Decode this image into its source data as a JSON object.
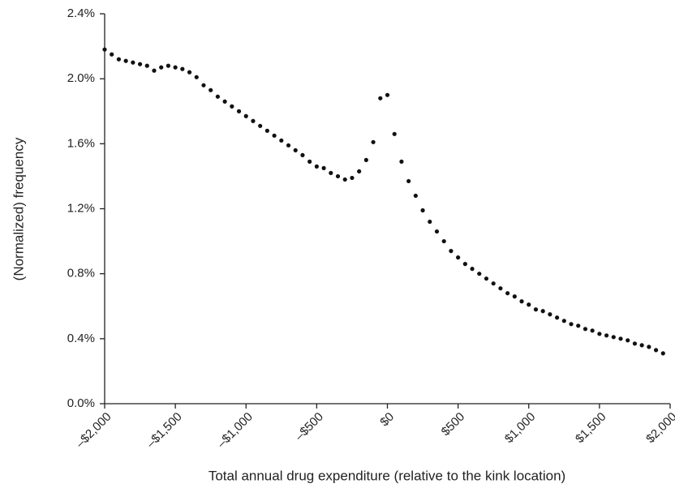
{
  "chart_data": {
    "type": "scatter",
    "xlabel": "Total annual drug expenditure (relative to the kink location)",
    "ylabel": "(Normalized) frequency",
    "x": [
      -2000,
      -1950,
      -1900,
      -1850,
      -1800,
      -1750,
      -1700,
      -1650,
      -1600,
      -1550,
      -1500,
      -1450,
      -1400,
      -1350,
      -1300,
      -1250,
      -1200,
      -1150,
      -1100,
      -1050,
      -1000,
      -950,
      -900,
      -850,
      -800,
      -750,
      -700,
      -650,
      -600,
      -550,
      -500,
      -450,
      -400,
      -350,
      -300,
      -250,
      -200,
      -150,
      -100,
      -50,
      0,
      50,
      100,
      150,
      200,
      250,
      300,
      350,
      400,
      450,
      500,
      550,
      600,
      650,
      700,
      750,
      800,
      850,
      900,
      950,
      1000,
      1050,
      1100,
      1150,
      1200,
      1250,
      1300,
      1350,
      1400,
      1450,
      1500,
      1550,
      1600,
      1650,
      1700,
      1750,
      1800,
      1850,
      1900,
      1950
    ],
    "series": [
      {
        "color": "#111111",
        "values": [
          2.18,
          2.15,
          2.12,
          2.11,
          2.1,
          2.09,
          2.08,
          2.05,
          2.07,
          2.08,
          2.07,
          2.06,
          2.04,
          2.01,
          1.96,
          1.93,
          1.89,
          1.86,
          1.83,
          1.8,
          1.77,
          1.74,
          1.71,
          1.68,
          1.65,
          1.62,
          1.59,
          1.56,
          1.53,
          1.49,
          1.46,
          1.45,
          1.42,
          1.4,
          1.38,
          1.39,
          1.43,
          1.5,
          1.61,
          1.88,
          1.9,
          1.66,
          1.49,
          1.37,
          1.28,
          1.19,
          1.12,
          1.06,
          1.0,
          0.94,
          0.9,
          0.86,
          0.83,
          0.8,
          0.77,
          0.74,
          0.71,
          0.68,
          0.66,
          0.63,
          0.61,
          0.58,
          0.57,
          0.55,
          0.53,
          0.51,
          0.49,
          0.48,
          0.46,
          0.45,
          0.43,
          0.42,
          0.41,
          0.4,
          0.39,
          0.37,
          0.36,
          0.35,
          0.33,
          0.31
        ]
      }
    ],
    "xlim": [
      -2000,
      2000
    ],
    "xticks": [
      {
        "value": -2000,
        "label": "–$2,000"
      },
      {
        "value": -1500,
        "label": "–$1,500"
      },
      {
        "value": -1000,
        "label": "–$1,000"
      },
      {
        "value": -500,
        "label": "–$500"
      },
      {
        "value": 0,
        "label": "$0"
      },
      {
        "value": 500,
        "label": "$500"
      },
      {
        "value": 1000,
        "label": "$1,000"
      },
      {
        "value": 1500,
        "label": "$1,500"
      },
      {
        "value": 2000,
        "label": "$2,000"
      }
    ],
    "ylim": [
      0,
      2.4
    ],
    "yticks": [
      {
        "value": 0,
        "label": "0.0%"
      },
      {
        "value": 0.4,
        "label": "0.4%"
      },
      {
        "value": 0.8,
        "label": "0.8%"
      },
      {
        "value": 1.2,
        "label": "1.2%"
      },
      {
        "value": 1.6,
        "label": "1.6%"
      },
      {
        "value": 2.0,
        "label": "2.0%"
      },
      {
        "value": 2.4,
        "label": "2.4%"
      }
    ],
    "grid": false
  }
}
